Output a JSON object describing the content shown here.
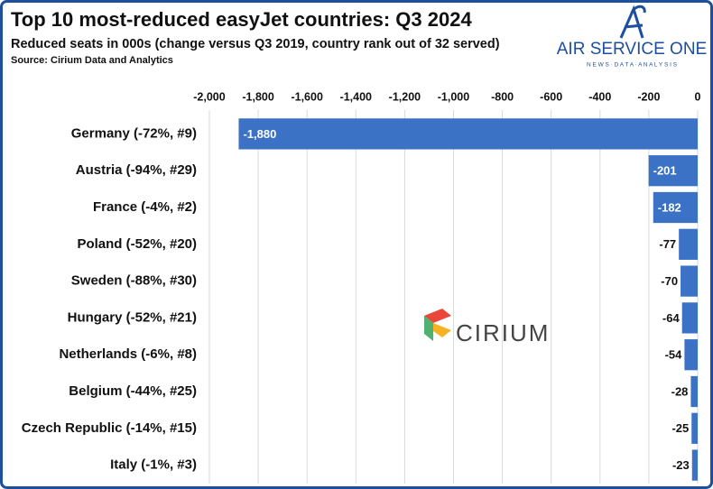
{
  "chart_data": {
    "type": "bar",
    "orientation": "horizontal",
    "title": "Top 10 most-reduced easyJet countries: Q3 2024",
    "subtitle": "Reduced seats in 000s (change versus Q3 2019, country rank out of 32 served)",
    "source": "Source: Cirium Data and Analytics",
    "annotations": [
      "AIR SERVICE ONE",
      "N E W S  ·  D A T A  ·  A N A L Y S I S",
      "CIRIUM"
    ],
    "categories": [
      "Germany (-72%, #9)",
      "Austria (-94%, #29)",
      "France (-4%, #2)",
      "Poland (-52%, #20)",
      "Sweden (-88%, #30)",
      "Hungary (-52%, #21)",
      "Netherlands (-6%, #8)",
      "Belgium (-44%, #25)",
      "Czech Republic (-14%, #15)",
      "Italy (-1%, #3)"
    ],
    "values": [
      -1880,
      -201,
      -182,
      -77,
      -70,
      -64,
      -54,
      -28,
      -25,
      -23
    ],
    "value_labels": [
      "-1,880",
      "-201",
      "-182",
      "-77",
      "-70",
      "-64",
      "-54",
      "-28",
      "-25",
      "-23"
    ],
    "color": "#3b72c6",
    "xlim": [
      -2000,
      0
    ],
    "xticks": [
      {
        "value": -2000,
        "label": "-2,000"
      },
      {
        "value": -1800,
        "label": "-1,800"
      },
      {
        "value": -1600,
        "label": "-1,600"
      },
      {
        "value": -1400,
        "label": "-1,400"
      },
      {
        "value": -1200,
        "label": "-1,200"
      },
      {
        "value": -1000,
        "label": "-1,000"
      },
      -800,
      -600,
      -400,
      -200,
      0
    ],
    "grid": true
  }
}
